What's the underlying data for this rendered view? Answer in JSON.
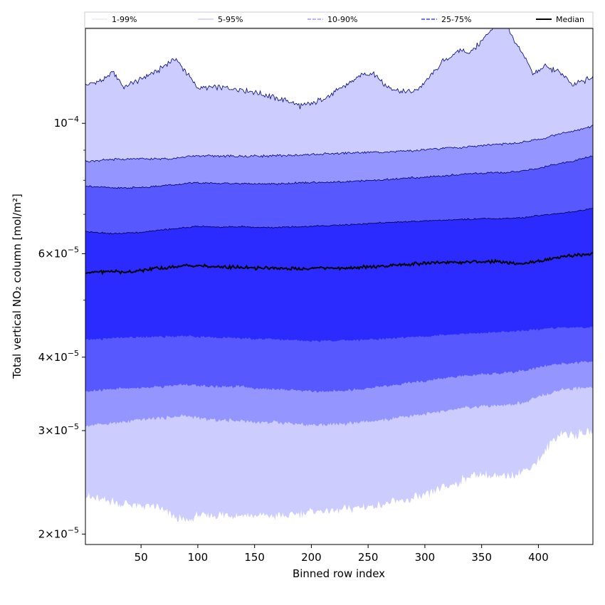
{
  "chart_data": {
    "type": "area",
    "xlabel": "Binned row index",
    "ylabel": "Total vertical NO₂ column [mol/m²]",
    "yscale": "log",
    "xlim": [
      1,
      448
    ],
    "ylim": [
      1.92e-05,
      0.000145
    ],
    "x_ticks": [
      50,
      100,
      150,
      200,
      250,
      300,
      350,
      400
    ],
    "y_ticks": [
      {
        "value": 2e-05,
        "mantissa": "2",
        "exp": "−5"
      },
      {
        "value": 3e-05,
        "mantissa": "3",
        "exp": "−5"
      },
      {
        "value": 4e-05,
        "mantissa": "4",
        "exp": "−5"
      },
      {
        "value": 6e-05,
        "mantissa": "6",
        "exp": "−5"
      },
      {
        "value": 0.0001,
        "mantissa": "",
        "exp": "−4"
      }
    ],
    "legend": {
      "placement": "top",
      "entries": [
        {
          "label": "1-99%",
          "style": "thin"
        },
        {
          "label": "5-95%",
          "style": "thin"
        },
        {
          "label": "10-90%",
          "style": "dashed"
        },
        {
          "label": "25-75%",
          "style": "dashed"
        },
        {
          "label": "Median",
          "style": "solid"
        }
      ]
    },
    "x": [
      1,
      20,
      25,
      35,
      50,
      65,
      80,
      90,
      100,
      120,
      140,
      150,
      165,
      180,
      190,
      200,
      215,
      230,
      245,
      255,
      265,
      280,
      290,
      300,
      315,
      330,
      340,
      350,
      360,
      370,
      380,
      390,
      395,
      405,
      410,
      420,
      430,
      440,
      448
    ],
    "series": [
      {
        "name": "1-99%",
        "color": "#ccccff",
        "line": "#000080",
        "lower": [
          2.32e-05,
          2.28e-05,
          2.27e-05,
          2.25e-05,
          2.24e-05,
          2.22e-05,
          2.13e-05,
          2.11e-05,
          2.15e-05,
          2.16e-05,
          2.15e-05,
          2.15e-05,
          2.15e-05,
          2.14e-05,
          2.17e-05,
          2.19e-05,
          2.19e-05,
          2.2e-05,
          2.23e-05,
          2.23e-05,
          2.25e-05,
          2.27e-05,
          2.3e-05,
          2.32e-05,
          2.39e-05,
          2.45e-05,
          2.52e-05,
          2.53e-05,
          2.5e-05,
          2.51e-05,
          2.53e-05,
          2.58e-05,
          2.62e-05,
          2.74e-05,
          2.85e-05,
          2.97e-05,
          2.95e-05,
          2.97e-05,
          2.98e-05
        ],
        "upper": [
          0.000116,
          0.000119,
          0.000123,
          0.000115,
          0.000119,
          0.000123,
          0.000129,
          0.000122,
          0.000115,
          0.000115,
          0.000114,
          0.000113,
          0.000111,
          0.000109,
          0.000107,
          0.000108,
          0.000111,
          0.000116,
          0.000121,
          0.000122,
          0.000116,
          0.000113,
          0.000113,
          0.000117,
          0.000127,
          0.000133,
          0.000132,
          0.000138,
          0.000146,
          0.000148,
          0.000137,
          0.000128,
          0.000121,
          0.000125,
          0.000124,
          0.000122,
          0.000116,
          0.000118,
          0.00012
        ]
      },
      {
        "name": "5-95%",
        "color": "#9595ff",
        "line": "#000080",
        "lower": [
          3.06e-05,
          3.08e-05,
          3.09e-05,
          3.1e-05,
          3.13e-05,
          3.15e-05,
          3.17e-05,
          3.18e-05,
          3.15e-05,
          3.12e-05,
          3.12e-05,
          3.1e-05,
          3.1e-05,
          3.09e-05,
          3.08e-05,
          3.07e-05,
          3.07e-05,
          3.08e-05,
          3.1e-05,
          3.11e-05,
          3.13e-05,
          3.16e-05,
          3.18e-05,
          3.2e-05,
          3.23e-05,
          3.27e-05,
          3.28e-05,
          3.3e-05,
          3.3e-05,
          3.31e-05,
          3.33e-05,
          3.36e-05,
          3.4e-05,
          3.45e-05,
          3.48e-05,
          3.52e-05,
          3.53e-05,
          3.55e-05,
          3.55e-05
        ],
        "upper": [
          8.62e-05,
          8.66e-05,
          8.68e-05,
          8.69e-05,
          8.7e-05,
          8.7e-05,
          8.72e-05,
          8.77e-05,
          8.8e-05,
          8.8e-05,
          8.78e-05,
          8.8e-05,
          8.8e-05,
          8.82e-05,
          8.82e-05,
          8.85e-05,
          8.87e-05,
          8.9e-05,
          8.92e-05,
          8.93e-05,
          8.94e-05,
          8.96e-05,
          8.99e-05,
          9.02e-05,
          9.06e-05,
          9.1e-05,
          9.13e-05,
          9.17e-05,
          9.2e-05,
          9.22e-05,
          9.25e-05,
          9.3e-05,
          9.35e-05,
          9.43e-05,
          9.5e-05,
          9.6e-05,
          9.7e-05,
          9.8e-05,
          9.9e-05
        ]
      },
      {
        "name": "10-90%",
        "color": "#5858ff",
        "line": "#000060",
        "lower": [
          3.5e-05,
          3.52e-05,
          3.53e-05,
          3.54e-05,
          3.55e-05,
          3.56e-05,
          3.58e-05,
          3.59e-05,
          3.58e-05,
          3.56e-05,
          3.57e-05,
          3.54e-05,
          3.53e-05,
          3.52e-05,
          3.51e-05,
          3.5e-05,
          3.5e-05,
          3.51e-05,
          3.53e-05,
          3.55e-05,
          3.57e-05,
          3.6e-05,
          3.62e-05,
          3.64e-05,
          3.68e-05,
          3.71e-05,
          3.72e-05,
          3.74e-05,
          3.75e-05,
          3.76e-05,
          3.78e-05,
          3.8e-05,
          3.82e-05,
          3.86e-05,
          3.88e-05,
          3.9e-05,
          3.91e-05,
          3.92e-05,
          3.93e-05
        ],
        "upper": [
          7.82e-05,
          7.78e-05,
          7.76e-05,
          7.76e-05,
          7.78e-05,
          7.82e-05,
          7.86e-05,
          7.9e-05,
          7.92e-05,
          7.9e-05,
          7.9e-05,
          7.88e-05,
          7.88e-05,
          7.9e-05,
          7.92e-05,
          7.93e-05,
          7.94e-05,
          7.96e-05,
          7.98e-05,
          8e-05,
          8.02e-05,
          8.05e-05,
          8.08e-05,
          8.1e-05,
          8.14e-05,
          8.18e-05,
          8.2e-05,
          8.23e-05,
          8.24e-05,
          8.25e-05,
          8.27e-05,
          8.32e-05,
          8.36e-05,
          8.42e-05,
          8.47e-05,
          8.55e-05,
          8.62e-05,
          8.72e-05,
          8.8e-05
        ]
      },
      {
        "name": "25-75%",
        "color": "#2b2bff",
        "line": "#000040",
        "lower": [
          4.28e-05,
          4.3e-05,
          4.31e-05,
          4.32e-05,
          4.33e-05,
          4.33e-05,
          4.34e-05,
          4.35e-05,
          4.33e-05,
          4.32e-05,
          4.31e-05,
          4.3e-05,
          4.29e-05,
          4.28e-05,
          4.27e-05,
          4.26e-05,
          4.26e-05,
          4.27e-05,
          4.28e-05,
          4.29e-05,
          4.3e-05,
          4.32e-05,
          4.33e-05,
          4.34e-05,
          4.36e-05,
          4.38e-05,
          4.39e-05,
          4.4e-05,
          4.41e-05,
          4.42e-05,
          4.43e-05,
          4.44e-05,
          4.45e-05,
          4.47e-05,
          4.48e-05,
          4.49e-05,
          4.5e-05,
          4.5e-05,
          4.51e-05
        ],
        "upper": [
          6.55e-05,
          6.5e-05,
          6.49e-05,
          6.5e-05,
          6.52e-05,
          6.58e-05,
          6.62e-05,
          6.65e-05,
          6.68e-05,
          6.66e-05,
          6.67e-05,
          6.65e-05,
          6.65e-05,
          6.66e-05,
          6.67e-05,
          6.68e-05,
          6.7e-05,
          6.72e-05,
          6.74e-05,
          6.76e-05,
          6.78e-05,
          6.8e-05,
          6.81e-05,
          6.82e-05,
          6.84e-05,
          6.86e-05,
          6.87e-05,
          6.88e-05,
          6.88e-05,
          6.88e-05,
          6.9e-05,
          6.92e-05,
          6.95e-05,
          6.98e-05,
          7e-05,
          7.03e-05,
          7.07e-05,
          7.12e-05,
          7.18e-05
        ]
      },
      {
        "name": "Median",
        "color": "#000000",
        "values": [
          5.58e-05,
          5.59e-05,
          5.6e-05,
          5.58e-05,
          5.62e-05,
          5.66e-05,
          5.7e-05,
          5.73e-05,
          5.72e-05,
          5.7e-05,
          5.68e-05,
          5.67e-05,
          5.67e-05,
          5.65e-05,
          5.66e-05,
          5.67e-05,
          5.68e-05,
          5.66e-05,
          5.7e-05,
          5.7e-05,
          5.72e-05,
          5.74e-05,
          5.76e-05,
          5.78e-05,
          5.79e-05,
          5.8e-05,
          5.81e-05,
          5.83e-05,
          5.82e-05,
          5.8e-05,
          5.77e-05,
          5.78e-05,
          5.8e-05,
          5.84e-05,
          5.88e-05,
          5.93e-05,
          5.95e-05,
          5.98e-05,
          6e-05
        ]
      }
    ]
  }
}
